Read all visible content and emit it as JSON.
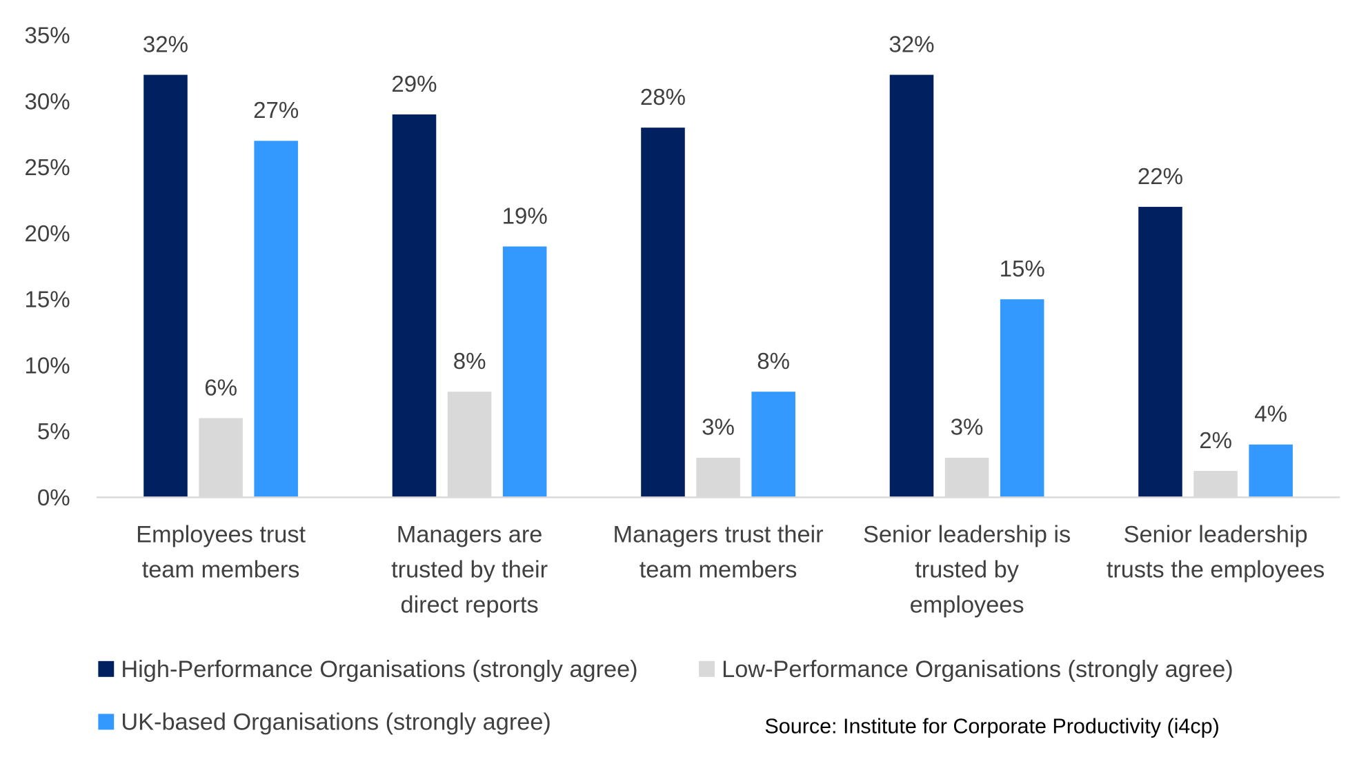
{
  "chart_data": {
    "type": "bar",
    "title": "",
    "xlabel": "",
    "ylabel": "",
    "ylim": [
      0,
      35
    ],
    "yticks": [
      0,
      5,
      10,
      15,
      20,
      25,
      30,
      35
    ],
    "ytick_format": "%",
    "grid": false,
    "legend_placement": "bottom",
    "categories": [
      [
        "Employees trust",
        "team members"
      ],
      [
        "Managers are",
        "trusted by their",
        "direct reports"
      ],
      [
        "Managers trust their",
        "team members"
      ],
      [
        "Senior leadership is",
        "trusted by",
        "employees"
      ],
      [
        "Senior leadership",
        "trusts the employees"
      ]
    ],
    "series": [
      {
        "name": "High-Performance Organisations (strongly agree)",
        "color": "#002060",
        "values": [
          32,
          29,
          28,
          32,
          22
        ]
      },
      {
        "name": "Low-Performance Organisations (strongly agree)",
        "color": "#D9D9D9",
        "values": [
          6,
          8,
          3,
          3,
          2
        ]
      },
      {
        "name": "UK-based Organisations (strongly agree)",
        "color": "#3399FF",
        "values": [
          27,
          19,
          8,
          15,
          4
        ]
      }
    ],
    "data_labels": true
  },
  "source": "Source: Institute for Corporate Productivity (i4cp)"
}
